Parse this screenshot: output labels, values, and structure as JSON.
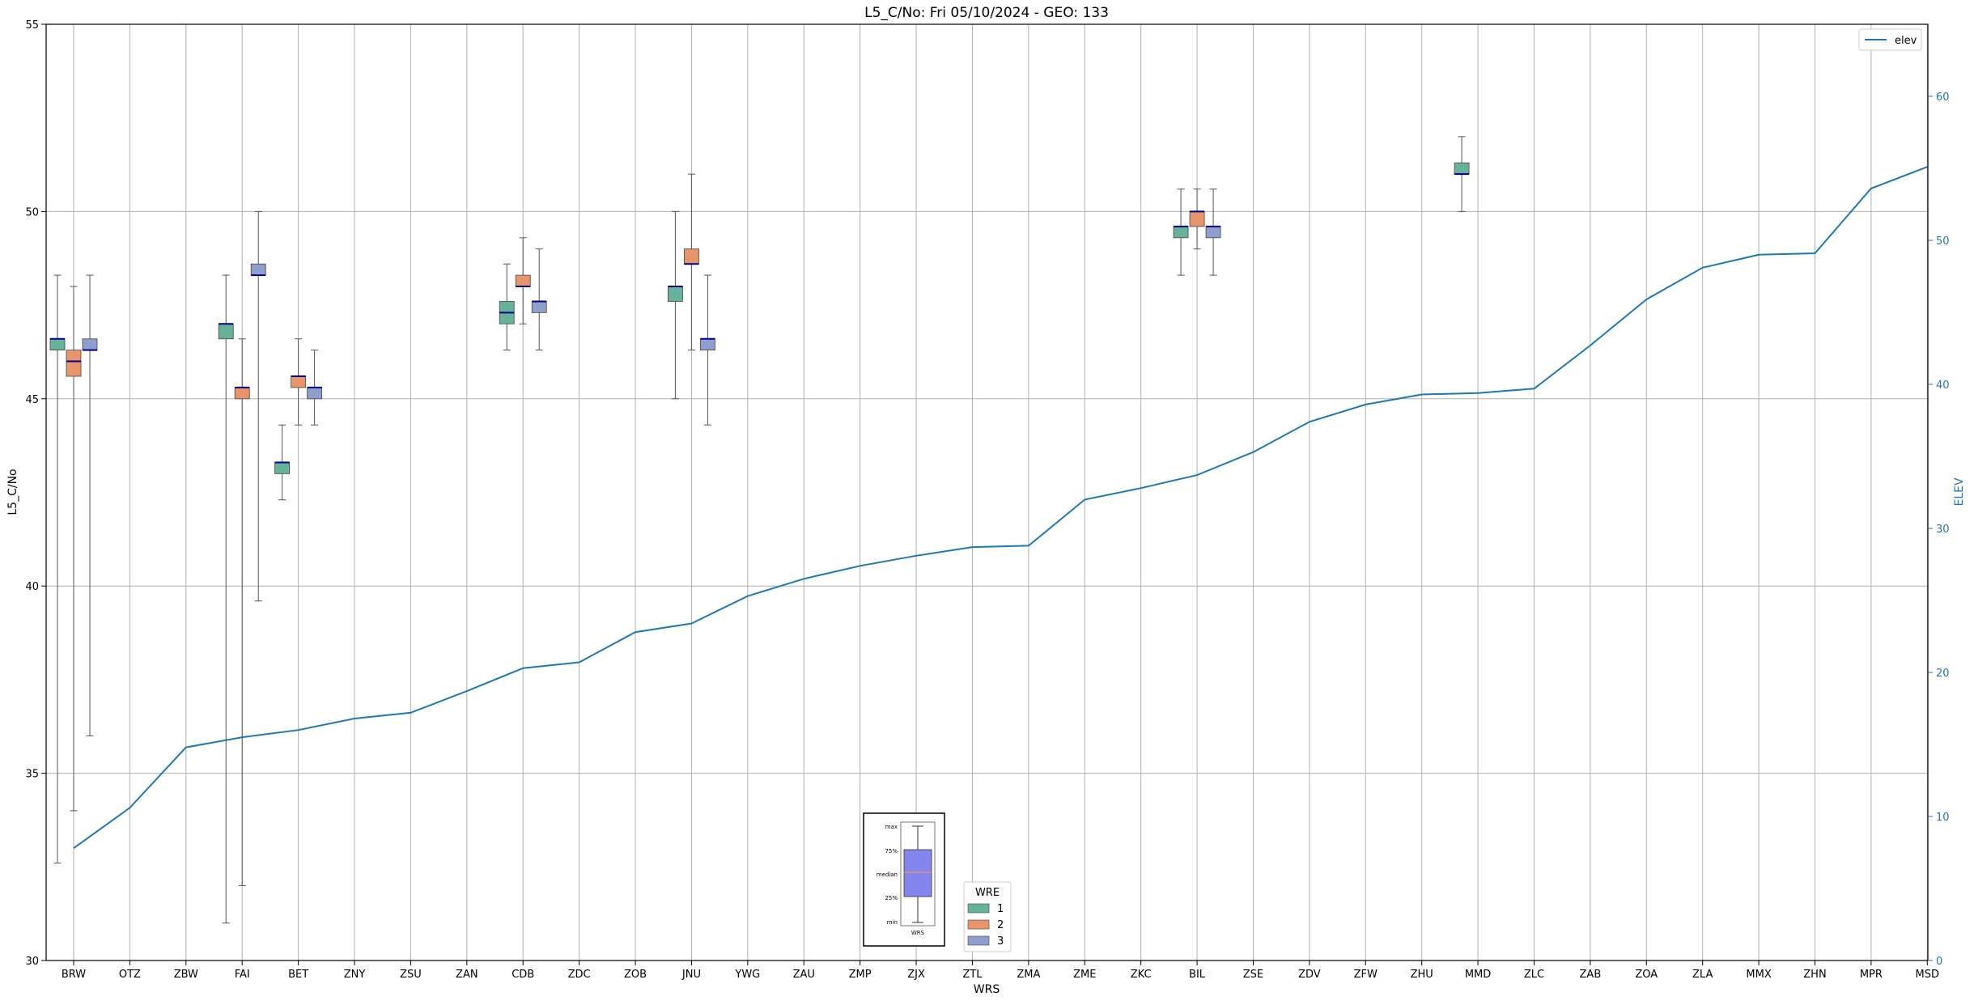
{
  "chart_data": {
    "type": "box",
    "title": "L5_C/No: Fri 05/10/2024 - GEO: 133",
    "xlabel": "WRS",
    "ylabel": "L5_C/No",
    "y2label": "ELEV",
    "ylim": [
      30,
      55
    ],
    "y2lim": [
      0,
      65
    ],
    "yticks": [
      30,
      35,
      40,
      45,
      50,
      55
    ],
    "y2ticks": [
      0,
      10,
      20,
      30,
      40,
      50,
      60
    ],
    "grid": true,
    "categories": [
      "BRW",
      "OTZ",
      "ZBW",
      "FAI",
      "BET",
      "ZNY",
      "ZSU",
      "ZAN",
      "CDB",
      "ZDC",
      "ZOB",
      "JNU",
      "YWG",
      "ZAU",
      "ZMP",
      "ZJX",
      "ZTL",
      "ZMA",
      "ZME",
      "ZKC",
      "BIL",
      "ZSE",
      "ZDV",
      "ZFW",
      "ZHU",
      "MMD",
      "ZLC",
      "ZAB",
      "ZOA",
      "ZLA",
      "MMX",
      "ZHN",
      "MPR",
      "MSD"
    ],
    "line_series": {
      "name": "elev",
      "color": "#1f77b4",
      "values": [
        7.8,
        10.6,
        14.8,
        15.5,
        16.0,
        16.8,
        17.2,
        18.7,
        20.3,
        20.7,
        22.8,
        23.4,
        25.3,
        26.5,
        27.4,
        28.1,
        28.7,
        28.8,
        32.0,
        32.8,
        33.7,
        35.3,
        37.4,
        38.6,
        39.3,
        39.4,
        39.7,
        42.7,
        45.9,
        48.1,
        49.0,
        49.1,
        53.6,
        55.1
      ]
    },
    "box_series": [
      {
        "name": "1",
        "color": "#66b399"
      },
      {
        "name": "2",
        "color": "#e8956b"
      },
      {
        "name": "3",
        "color": "#8f9fcd"
      }
    ],
    "boxes": [
      {
        "category": "BRW",
        "series": "1",
        "min": 32.6,
        "q1": 46.3,
        "median": 46.6,
        "q3": 46.6,
        "max": 48.3
      },
      {
        "category": "BRW",
        "series": "2",
        "min": 34.0,
        "q1": 45.6,
        "median": 46.0,
        "q3": 46.3,
        "max": 48.0
      },
      {
        "category": "BRW",
        "series": "3",
        "min": 36.0,
        "q1": 46.3,
        "median": 46.3,
        "q3": 46.6,
        "max": 48.3
      },
      {
        "category": "FAI",
        "series": "1",
        "min": 31.0,
        "q1": 46.6,
        "median": 47.0,
        "q3": 47.0,
        "max": 48.3
      },
      {
        "category": "FAI",
        "series": "2",
        "min": 32.0,
        "q1": 45.0,
        "median": 45.3,
        "q3": 45.3,
        "max": 46.6
      },
      {
        "category": "FAI",
        "series": "3",
        "min": 39.6,
        "q1": 48.3,
        "median": 48.3,
        "q3": 48.6,
        "max": 50.0
      },
      {
        "category": "BET",
        "series": "1",
        "min": 42.3,
        "q1": 43.0,
        "median": 43.3,
        "q3": 43.3,
        "max": 44.3
      },
      {
        "category": "BET",
        "series": "2",
        "min": 44.3,
        "q1": 45.3,
        "median": 45.6,
        "q3": 45.6,
        "max": 46.6
      },
      {
        "category": "BET",
        "series": "3",
        "min": 44.3,
        "q1": 45.0,
        "median": 45.3,
        "q3": 45.3,
        "max": 46.3
      },
      {
        "category": "CDB",
        "series": "1",
        "min": 46.3,
        "q1": 47.0,
        "median": 47.3,
        "q3": 47.6,
        "max": 48.6
      },
      {
        "category": "CDB",
        "series": "2",
        "min": 47.0,
        "q1": 48.0,
        "median": 48.0,
        "q3": 48.3,
        "max": 49.3
      },
      {
        "category": "CDB",
        "series": "3",
        "min": 46.3,
        "q1": 47.3,
        "median": 47.6,
        "q3": 47.6,
        "max": 49.0
      },
      {
        "category": "JNU",
        "series": "1",
        "min": 45.0,
        "q1": 47.6,
        "median": 48.0,
        "q3": 48.0,
        "max": 50.0
      },
      {
        "category": "JNU",
        "series": "2",
        "min": 46.3,
        "q1": 48.6,
        "median": 48.6,
        "q3": 49.0,
        "max": 51.0
      },
      {
        "category": "JNU",
        "series": "3",
        "min": 44.3,
        "q1": 46.3,
        "median": 46.6,
        "q3": 46.6,
        "max": 48.3
      },
      {
        "category": "BIL",
        "series": "1",
        "min": 48.3,
        "q1": 49.3,
        "median": 49.6,
        "q3": 49.6,
        "max": 50.6
      },
      {
        "category": "BIL",
        "series": "2",
        "min": 49.0,
        "q1": 49.6,
        "median": 50.0,
        "q3": 50.0,
        "max": 50.6
      },
      {
        "category": "BIL",
        "series": "3",
        "min": 48.3,
        "q1": 49.3,
        "median": 49.6,
        "q3": 49.6,
        "max": 50.6
      },
      {
        "category": "MMD",
        "series": "1",
        "min": 50.0,
        "q1": 51.0,
        "median": 51.0,
        "q3": 51.3,
        "max": 52.0
      }
    ],
    "line_legend": {
      "label": "elev",
      "placement": "top-right"
    },
    "box_legend": {
      "title": "WRE",
      "labels": [
        "1",
        "2",
        "3"
      ],
      "placement": "bottom-center"
    },
    "key_inset": {
      "labels": [
        "max",
        "75%",
        "median",
        "25%",
        "min"
      ],
      "xlabel": "WRS"
    }
  }
}
